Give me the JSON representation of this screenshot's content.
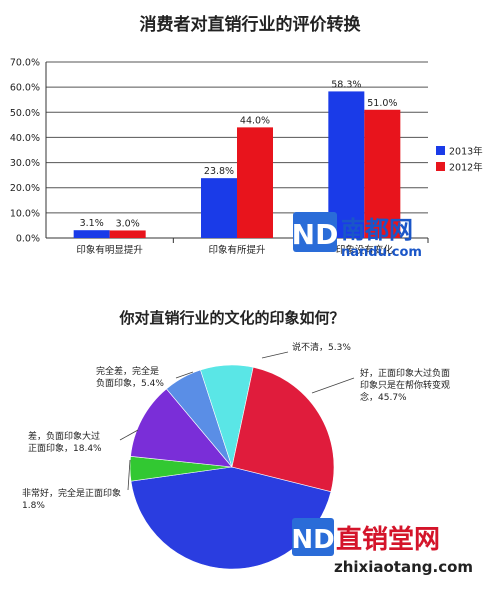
{
  "chart_data": [
    {
      "type": "bar",
      "title": "消费者对直销行业的评价转换",
      "categories": [
        "印象有明显提升",
        "印象有所提升",
        "印象没有变化"
      ],
      "ylim": [
        0,
        70
      ],
      "yticks": [
        "0.0%",
        "10.0%",
        "20.0%",
        "30.0%",
        "40.0%",
        "50.0%",
        "60.0%",
        "70.0%"
      ],
      "grid": true,
      "legend_position": "right",
      "series": [
        {
          "name": "2013年",
          "color": "#1a3be8",
          "values": [
            3.1,
            23.8,
            58.3
          ],
          "labels": [
            "3.1%",
            "23.8%",
            "58.3%"
          ]
        },
        {
          "name": "2012年",
          "color": "#e8141c",
          "values": [
            3.0,
            44.0,
            51.0
          ],
          "labels": [
            "3.0%",
            "44.0%",
            "51.0%"
          ]
        }
      ]
    },
    {
      "type": "pie",
      "title": "你对直销行业的文化的印象如何？",
      "slices": [
        {
          "label": "非常好，完全是正面印象",
          "value_label": "1.8%",
          "color": "#2a3de0"
        },
        {
          "label": "差，负面印象大过正面印象",
          "value_label": "18.4%",
          "color": "#32c832"
        },
        {
          "label": "完全差，完全是负面印象",
          "value_label": "5.4%",
          "color": "#7a2ed8"
        },
        {
          "label": "说不清",
          "value_label": "5.3%",
          "color": "#5a8ee6"
        },
        {
          "label": "好，正面印象大过负面印象只是在帮你转变观念",
          "value_label": "45.7%",
          "color": "#5ae6e6"
        },
        {
          "label": "",
          "value_label": "",
          "color": "#e01c3c"
        }
      ],
      "labels": [
        {
          "lines": [
            "完全差，完全是",
            "负面印象，5.4%"
          ]
        },
        {
          "lines": [
            "说不清，5.3%"
          ]
        },
        {
          "lines": [
            "好，正面印象大过负面",
            "印象只是在帮你转变观",
            "念，45.7%"
          ]
        },
        {
          "lines": [
            "差，负面印象大过",
            "正面印象，18.4%"
          ]
        },
        {
          "lines": [
            "非常好，完全是正面印象",
            "1.8%"
          ]
        }
      ]
    }
  ],
  "watermarks": [
    {
      "logo": "ND",
      "text": "南都网",
      "sub": "nandu.com"
    },
    {
      "logo": "ND",
      "text": "直销堂网",
      "sub": "zhixiaotang.com"
    }
  ]
}
